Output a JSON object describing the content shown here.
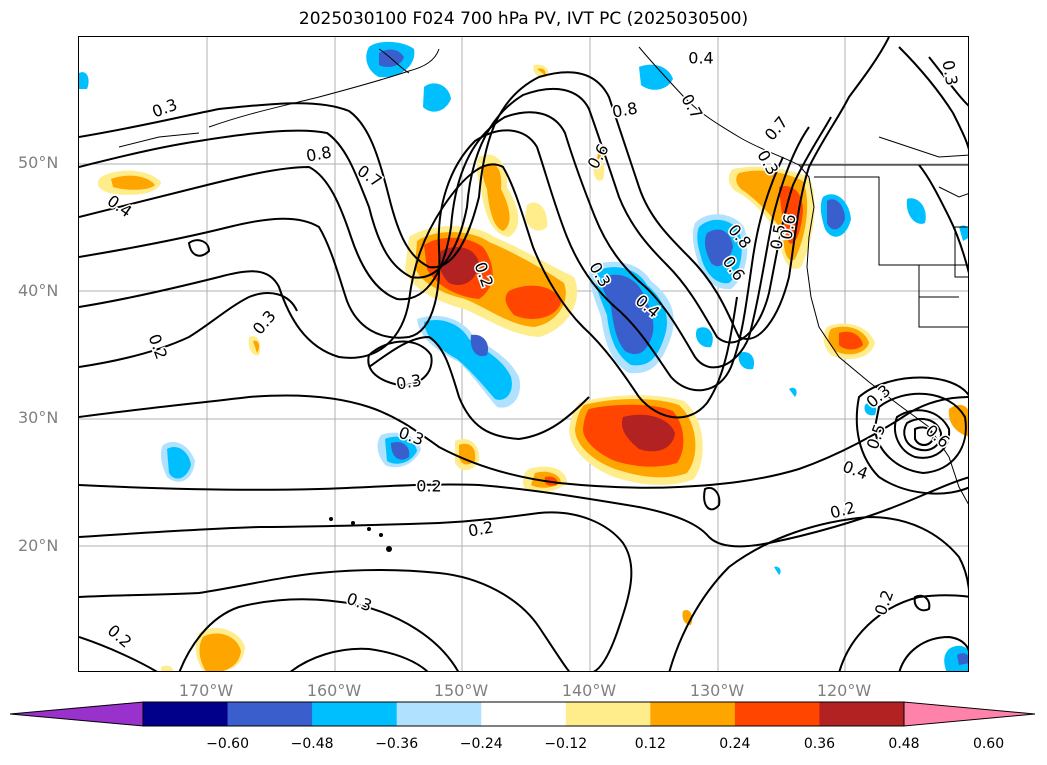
{
  "title": "2025030100 F024 700 hPa PV, IVT PC (2025030500)",
  "lat_labels": [
    "50°N",
    "40°N",
    "30°N",
    "20°N"
  ],
  "lon_labels": [
    "170°W",
    "160°W",
    "150°W",
    "140°W",
    "130°W",
    "120°W"
  ],
  "colorbar": {
    "ticks": [
      "−0.60",
      "−0.48",
      "−0.36",
      "−0.24",
      "−0.12",
      "0.12",
      "0.24",
      "0.36",
      "0.48",
      "0.60"
    ],
    "colors": [
      "#9932CC",
      "#00008B",
      "#3A5FCD",
      "#00BFFF",
      "#B0E2FF",
      "#FFFFFF",
      "#FFEC8B",
      "#FFA500",
      "#FF4500",
      "#B22222",
      "#FF82AB"
    ]
  },
  "contour_labels": [
    "0.4",
    "0.3",
    "0.8",
    "0.7",
    "0.6",
    "0.8",
    "0.7",
    "0.7",
    "0.4",
    "0.6",
    "0.8",
    "0.3",
    "0.5",
    "0.2",
    "0.3",
    "0.4",
    "0.3",
    "0.2",
    "0.3",
    "0.3",
    "0.3",
    "0.2",
    "0.2",
    "0.4",
    "0.5",
    "0.2",
    "0.3",
    "0.2",
    "0.2",
    "0.6",
    "0.3",
    "0.6"
  ],
  "map_region": "North Pacific",
  "chart_data": {
    "type": "contour-map",
    "field_contour": "700 hPa PV",
    "field_shaded": "IVT PC",
    "lat_ticks": [
      50,
      40,
      30,
      20
    ],
    "lon_ticks": [
      -170,
      -160,
      -150,
      -140,
      -130,
      -120
    ],
    "shading_levels": [
      -0.6,
      -0.48,
      -0.36,
      -0.24,
      -0.12,
      0.12,
      0.24,
      0.36,
      0.48,
      0.6
    ],
    "contour_levels_labeled": [
      0.2,
      0.3,
      0.4,
      0.5,
      0.6,
      0.7,
      0.8
    ]
  }
}
